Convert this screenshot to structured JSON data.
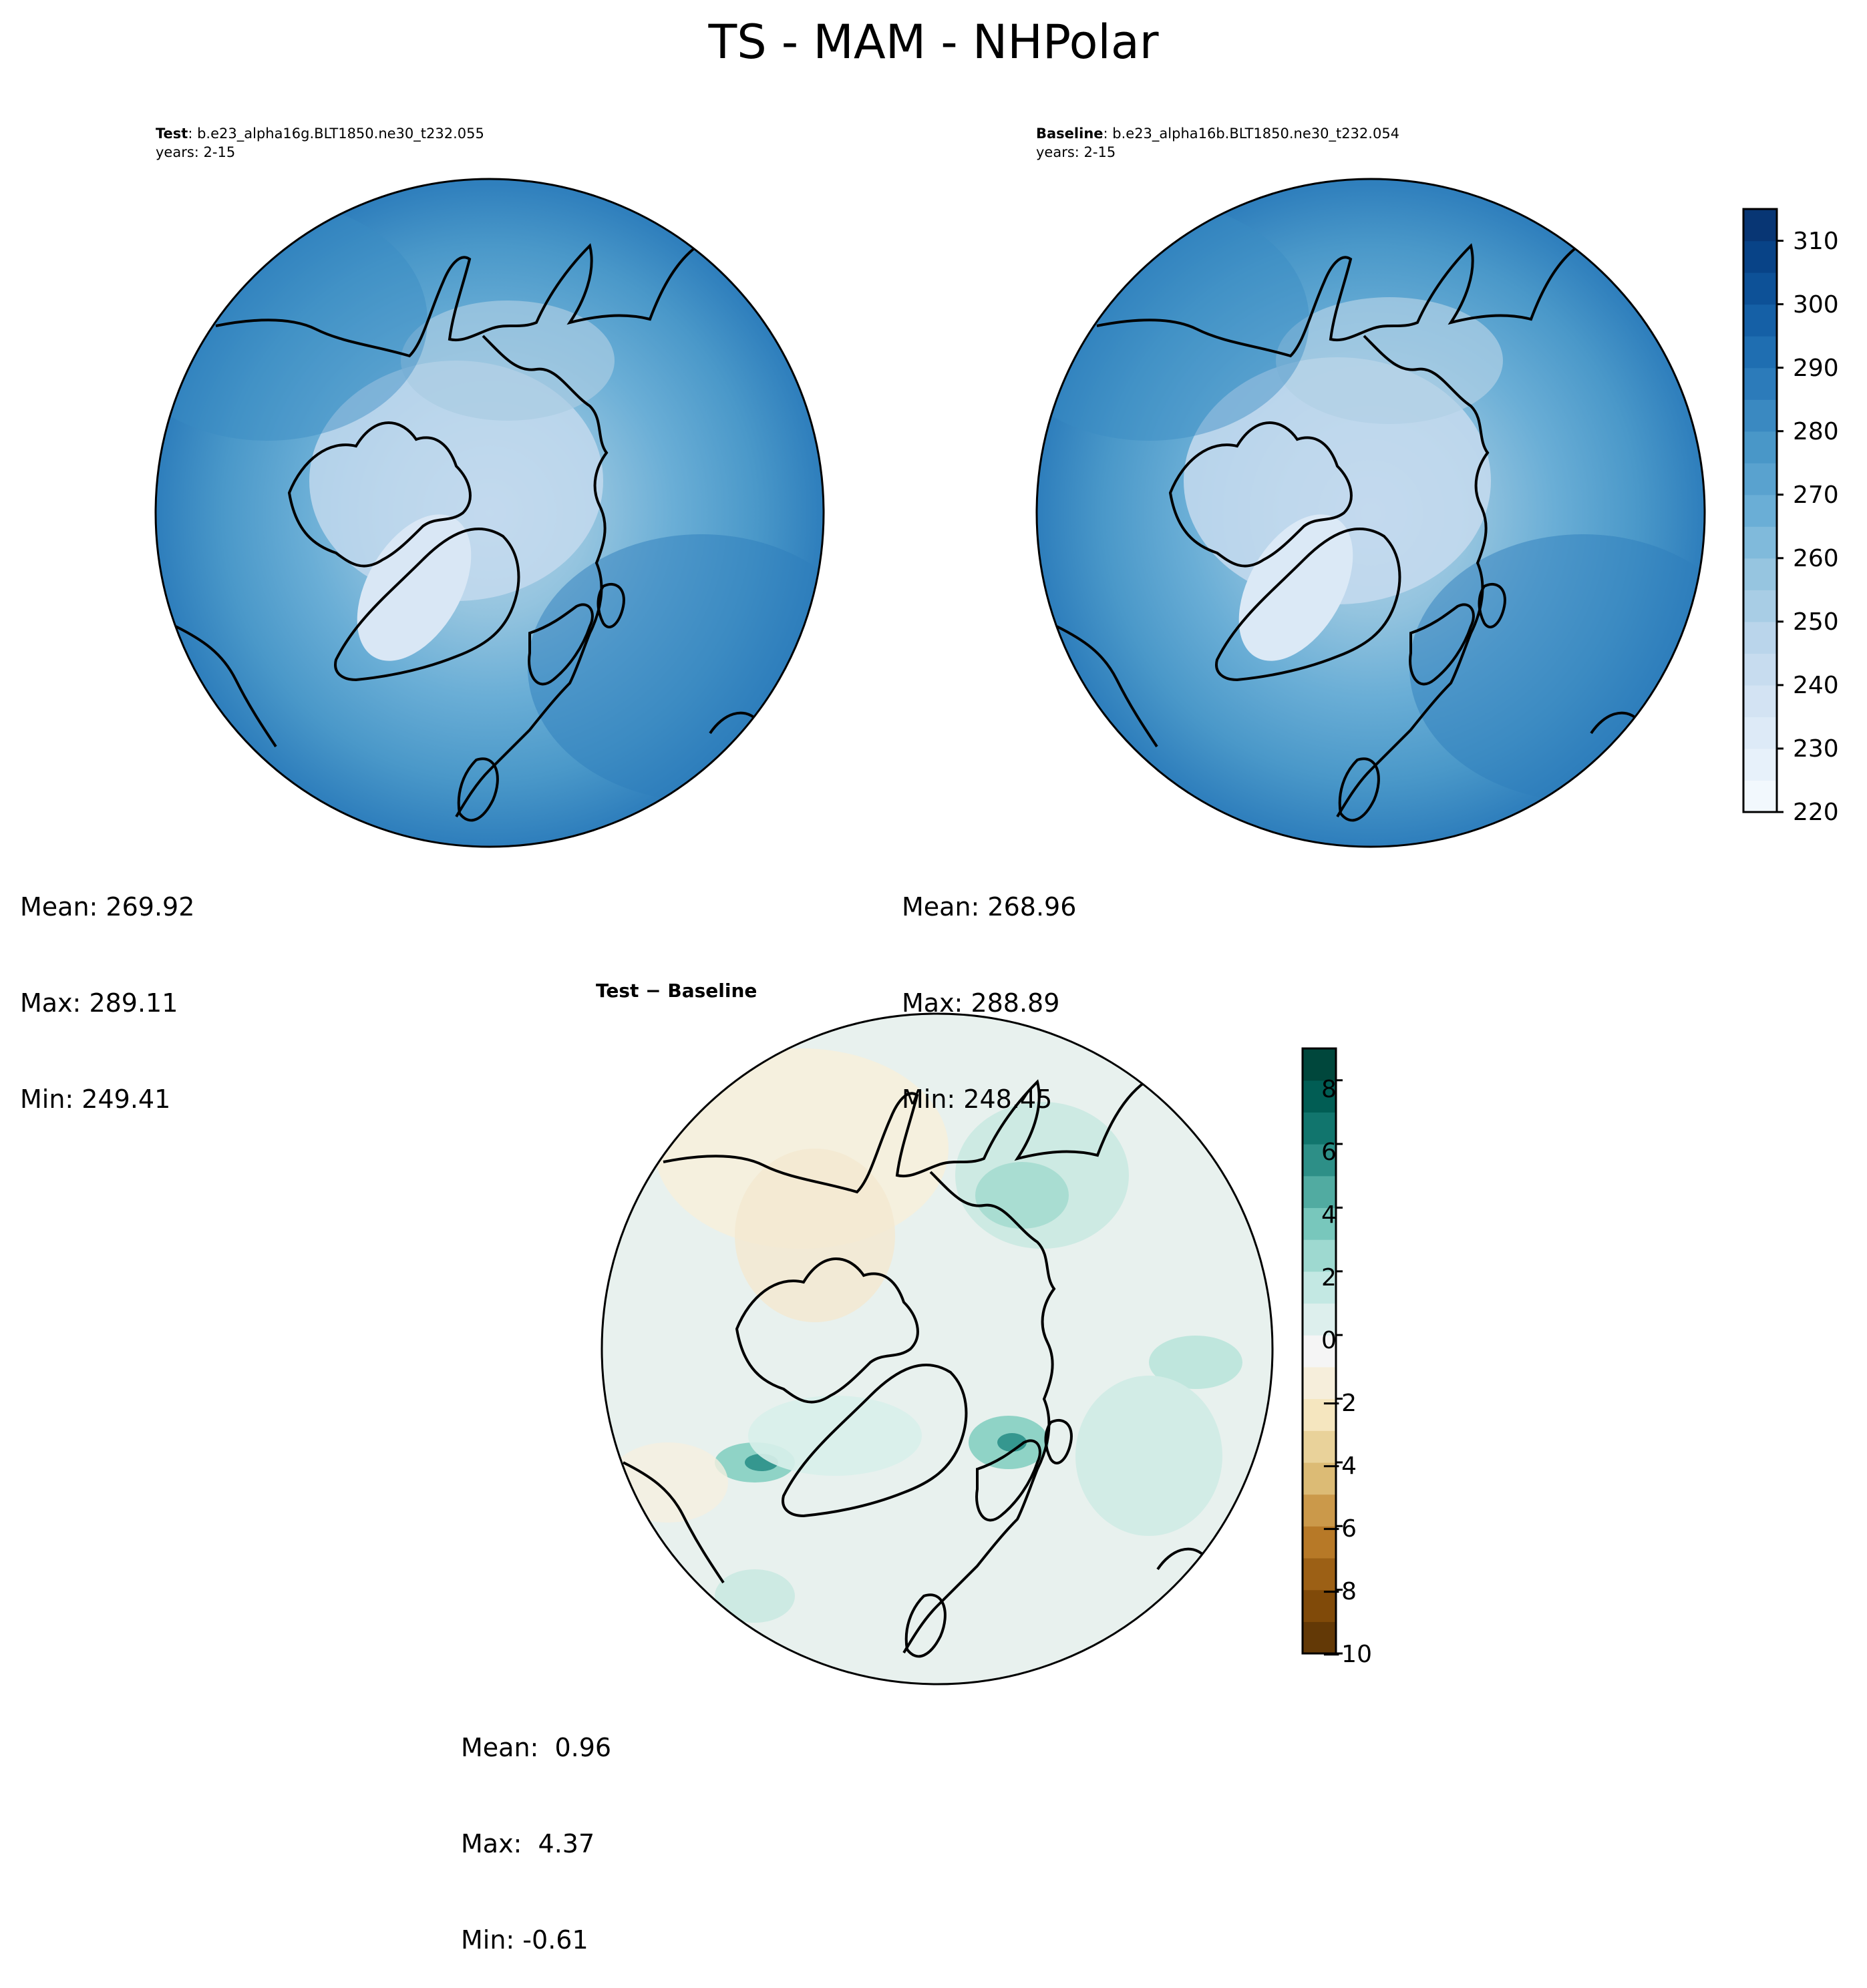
{
  "figure": {
    "title": "TS - MAM - NHPolar"
  },
  "panels": [
    {
      "id": "test",
      "label_bold": "Test",
      "label_rest": ": b.e23_alpha16g.BLT1850.ne30_t232.055",
      "years": "years: 2-15",
      "stats": {
        "mean": "Mean: 269.92",
        "max": "Max: 289.11",
        "min": "Min: 249.41"
      }
    },
    {
      "id": "baseline",
      "label_bold": "Baseline",
      "label_rest": ": b.e23_alpha16b.BLT1850.ne30_t232.054",
      "years": "years: 2-15",
      "stats": {
        "mean": "Mean: 268.96",
        "max": "Max: 288.89",
        "min": "Min: 248.45"
      }
    },
    {
      "id": "diff",
      "label_bold": "Test − Baseline",
      "stats": {
        "mean": "Mean:  0.96",
        "max": "Max:  4.37",
        "min": "Min: -0.61"
      }
    }
  ],
  "colorbars": {
    "ts": {
      "ticks": [
        "220",
        "230",
        "240",
        "250",
        "260",
        "270",
        "280",
        "290",
        "300",
        "310"
      ],
      "range": [
        220,
        315
      ],
      "colors": [
        "#f7fbff",
        "#e3eef9",
        "#d0e1f2",
        "#b7d4ea",
        "#94c4df",
        "#6aaed6",
        "#4a98c9",
        "#2e7ebc",
        "#1764ab",
        "#08488e",
        "#08306b"
      ]
    },
    "diff": {
      "ticks": [
        "−10",
        "−8",
        "−6",
        "−4",
        "−2",
        "0",
        "2",
        "4",
        "6",
        "8"
      ],
      "range": [
        -10,
        9
      ],
      "colors": [
        "#543005",
        "#8c510a",
        "#bf812d",
        "#dfc27d",
        "#f6e8c3",
        "#f5f5f5",
        "#c7eae5",
        "#80cdc1",
        "#35978f",
        "#01665e",
        "#003c30"
      ]
    }
  }
}
